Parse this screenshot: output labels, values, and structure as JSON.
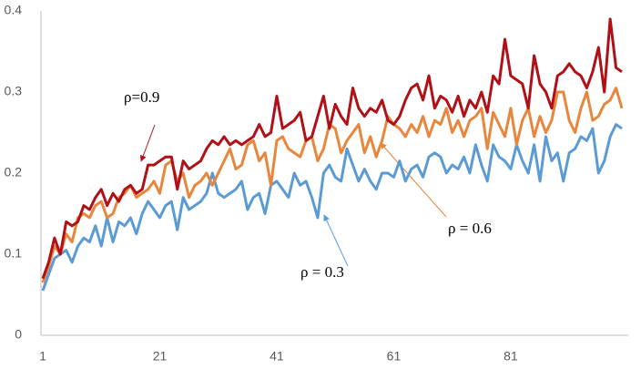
{
  "chart_data": {
    "type": "line",
    "x": [
      1,
      2,
      3,
      4,
      5,
      6,
      7,
      8,
      9,
      10,
      11,
      12,
      13,
      14,
      15,
      16,
      17,
      18,
      19,
      20,
      21,
      22,
      23,
      24,
      25,
      26,
      27,
      28,
      29,
      30,
      31,
      32,
      33,
      34,
      35,
      36,
      37,
      38,
      39,
      40,
      41,
      42,
      43,
      44,
      45,
      46,
      47,
      48,
      49,
      50,
      51,
      52,
      53,
      54,
      55,
      56,
      57,
      58,
      59,
      60,
      61,
      62,
      63,
      64,
      65,
      66,
      67,
      68,
      69,
      70,
      71,
      72,
      73,
      74,
      75,
      76,
      77,
      78,
      79,
      80,
      81,
      82,
      83,
      84,
      85,
      86,
      87,
      88,
      89,
      90,
      91,
      92,
      93,
      94,
      95,
      96,
      97,
      98,
      99,
      100
    ],
    "series": [
      {
        "name": "ρ=0.9",
        "color": "#b01117",
        "values": [
          0.07,
          0.09,
          0.12,
          0.1,
          0.14,
          0.135,
          0.14,
          0.16,
          0.155,
          0.17,
          0.18,
          0.16,
          0.175,
          0.165,
          0.18,
          0.185,
          0.175,
          0.18,
          0.21,
          0.21,
          0.215,
          0.22,
          0.22,
          0.18,
          0.215,
          0.205,
          0.21,
          0.215,
          0.23,
          0.24,
          0.235,
          0.245,
          0.235,
          0.24,
          0.235,
          0.24,
          0.245,
          0.26,
          0.245,
          0.25,
          0.295,
          0.255,
          0.26,
          0.265,
          0.275,
          0.24,
          0.245,
          0.27,
          0.295,
          0.255,
          0.285,
          0.27,
          0.26,
          0.305,
          0.28,
          0.27,
          0.28,
          0.275,
          0.29,
          0.265,
          0.26,
          0.27,
          0.29,
          0.305,
          0.31,
          0.29,
          0.32,
          0.28,
          0.295,
          0.29,
          0.275,
          0.295,
          0.27,
          0.29,
          0.28,
          0.3,
          0.275,
          0.32,
          0.31,
          0.365,
          0.32,
          0.315,
          0.31,
          0.28,
          0.345,
          0.31,
          0.3,
          0.28,
          0.32,
          0.325,
          0.335,
          0.325,
          0.32,
          0.305,
          0.325,
          0.355,
          0.3,
          0.39,
          0.33,
          0.325
        ]
      },
      {
        "name": "ρ = 0.6",
        "color": "#e8863c",
        "values": [
          0.065,
          0.085,
          0.11,
          0.1,
          0.125,
          0.115,
          0.145,
          0.15,
          0.145,
          0.16,
          0.165,
          0.145,
          0.15,
          0.17,
          0.175,
          0.185,
          0.17,
          0.175,
          0.18,
          0.19,
          0.175,
          0.21,
          0.215,
          0.19,
          0.2,
          0.17,
          0.185,
          0.19,
          0.2,
          0.185,
          0.2,
          0.215,
          0.23,
          0.205,
          0.21,
          0.235,
          0.24,
          0.215,
          0.225,
          0.185,
          0.24,
          0.245,
          0.23,
          0.225,
          0.22,
          0.24,
          0.245,
          0.215,
          0.23,
          0.26,
          0.255,
          0.225,
          0.24,
          0.25,
          0.26,
          0.225,
          0.245,
          0.22,
          0.24,
          0.27,
          0.26,
          0.255,
          0.245,
          0.26,
          0.25,
          0.27,
          0.245,
          0.265,
          0.26,
          0.28,
          0.25,
          0.265,
          0.245,
          0.265,
          0.27,
          0.28,
          0.23,
          0.275,
          0.26,
          0.245,
          0.28,
          0.235,
          0.265,
          0.28,
          0.245,
          0.27,
          0.25,
          0.265,
          0.3,
          0.3,
          0.265,
          0.25,
          0.28,
          0.3,
          0.265,
          0.27,
          0.285,
          0.29,
          0.305,
          0.28
        ]
      },
      {
        "name": "ρ = 0.3",
        "color": "#5b9bd5",
        "values": [
          0.055,
          0.075,
          0.095,
          0.1,
          0.105,
          0.09,
          0.11,
          0.12,
          0.115,
          0.135,
          0.11,
          0.145,
          0.115,
          0.14,
          0.135,
          0.145,
          0.125,
          0.15,
          0.165,
          0.155,
          0.145,
          0.16,
          0.165,
          0.13,
          0.17,
          0.155,
          0.16,
          0.165,
          0.175,
          0.2,
          0.175,
          0.17,
          0.175,
          0.18,
          0.19,
          0.155,
          0.17,
          0.175,
          0.15,
          0.185,
          0.19,
          0.18,
          0.17,
          0.2,
          0.185,
          0.19,
          0.17,
          0.145,
          0.2,
          0.21,
          0.195,
          0.19,
          0.23,
          0.21,
          0.19,
          0.205,
          0.19,
          0.18,
          0.2,
          0.2,
          0.195,
          0.215,
          0.19,
          0.205,
          0.21,
          0.195,
          0.22,
          0.225,
          0.22,
          0.2,
          0.21,
          0.205,
          0.22,
          0.2,
          0.235,
          0.21,
          0.19,
          0.235,
          0.22,
          0.215,
          0.205,
          0.235,
          0.215,
          0.2,
          0.235,
          0.19,
          0.245,
          0.215,
          0.225,
          0.19,
          0.225,
          0.23,
          0.245,
          0.24,
          0.255,
          0.2,
          0.215,
          0.245,
          0.26,
          0.255
        ]
      }
    ],
    "xlim": [
      1,
      100
    ],
    "xticks": [
      1,
      21,
      41,
      61,
      81
    ],
    "ylim": [
      0,
      0.4
    ],
    "yticks": [
      0,
      0.1,
      0.2,
      0.3,
      0.4
    ],
    "grid": false
  }
}
